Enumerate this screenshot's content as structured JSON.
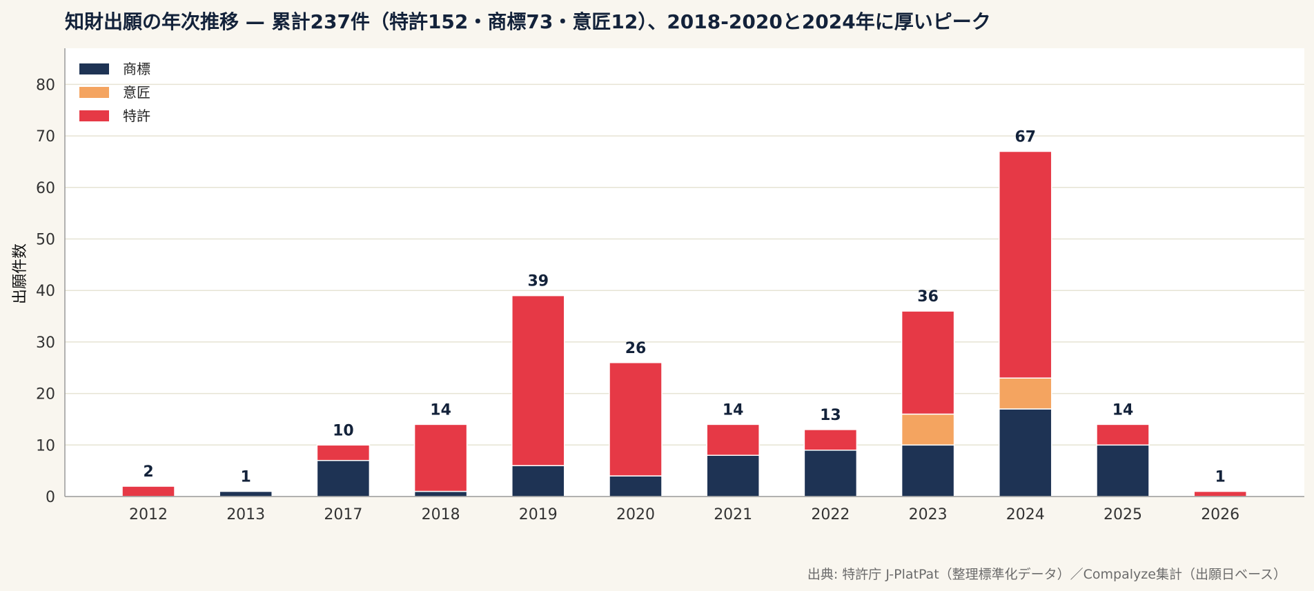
{
  "chart_data": {
    "type": "bar",
    "stacked": true,
    "title": "知財出願の年次推移 — 累計237件（特許152・商標73・意匠12）、2018-2020と2024年に厚いピーク",
    "xlabel": "",
    "ylabel": "出願件数",
    "ylim": [
      0,
      87
    ],
    "yticks": [
      0,
      10,
      20,
      30,
      40,
      50,
      60,
      70,
      80
    ],
    "grid": true,
    "legend_position": "top-left",
    "categories": [
      "2012",
      "2013",
      "2017",
      "2018",
      "2019",
      "2020",
      "2021",
      "2022",
      "2023",
      "2024",
      "2025",
      "2026"
    ],
    "series": [
      {
        "name": "商標",
        "color": "#1e3354",
        "values": [
          0,
          1,
          7,
          1,
          6,
          4,
          8,
          9,
          10,
          17,
          10,
          0
        ]
      },
      {
        "name": "意匠",
        "color": "#f4a460",
        "values": [
          0,
          0,
          0,
          0,
          0,
          0,
          0,
          0,
          6,
          6,
          0,
          0
        ]
      },
      {
        "name": "特許",
        "color": "#e63946",
        "values": [
          2,
          0,
          3,
          13,
          33,
          22,
          6,
          4,
          20,
          44,
          4,
          1
        ]
      }
    ],
    "totals": [
      2,
      1,
      10,
      14,
      39,
      26,
      14,
      13,
      36,
      67,
      14,
      1
    ],
    "source": "出典: 特許庁 J-PlatPat（整理標準化データ）／Compalyze集計（出願日ベース）"
  }
}
